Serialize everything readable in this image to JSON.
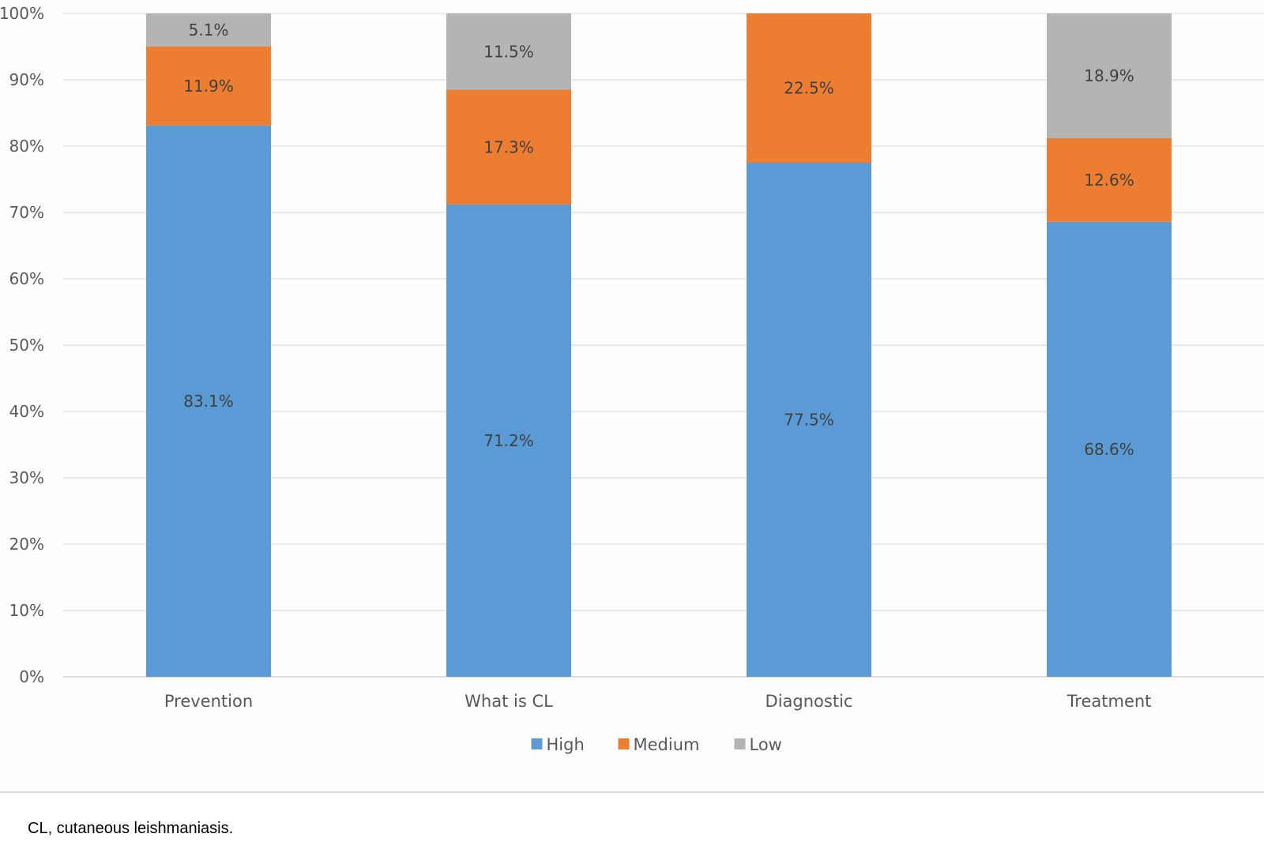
{
  "chart_data": {
    "type": "bar",
    "stacked": true,
    "categories": [
      "Prevention",
      "What is CL",
      "Diagnostic",
      "Treatment"
    ],
    "series": [
      {
        "name": "High",
        "color": "#5b9bd5",
        "values": [
          83.1,
          71.2,
          77.5,
          68.6
        ],
        "labels": [
          "83.1%",
          "71.2%",
          "77.5%",
          "68.6%"
        ]
      },
      {
        "name": "Medium",
        "color": "#ed7d31",
        "values": [
          11.9,
          17.3,
          22.5,
          12.6
        ],
        "labels": [
          "11.9%",
          "17.3%",
          "22.5%",
          "12.6%"
        ]
      },
      {
        "name": "Low",
        "color": "#b4b4b4",
        "values": [
          5.1,
          11.5,
          0,
          18.9
        ],
        "labels": [
          "5.1%",
          "11.5%",
          "",
          "18.9%"
        ]
      }
    ],
    "ylim": [
      0,
      100
    ],
    "yticks": [
      "0%",
      "10%",
      "20%",
      "30%",
      "40%",
      "50%",
      "60%",
      "70%",
      "80%",
      "90%",
      "100%"
    ],
    "grid": true,
    "legend": "bottom-center"
  },
  "footnote": "CL, cutaneous leishmaniasis."
}
